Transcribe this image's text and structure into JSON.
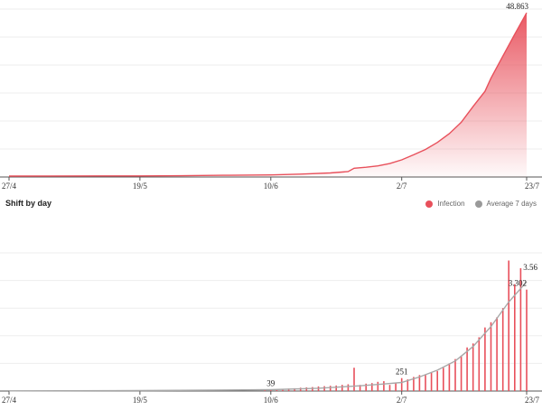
{
  "section_title": "Shift by day",
  "legend": {
    "infection_label": "Infection",
    "average_label": "Average 7 days"
  },
  "colors": {
    "infection": "#e8505b",
    "average": "#a8a8a8",
    "grid": "#eeeeee",
    "axis": "#555555"
  },
  "chart_data": [
    {
      "type": "area",
      "x_tick_labels": [
        "27/4",
        "19/5",
        "10/6",
        "2/7",
        "23/7"
      ],
      "x_range": [
        "27/4",
        "23/7"
      ],
      "grid": true,
      "annotations": [
        {
          "x": "23/7",
          "label": "48.863"
        }
      ],
      "ylim": [
        0,
        50000
      ],
      "series": [
        {
          "x": [
            "27/4",
            "4/5",
            "12/5",
            "19/5",
            "26/5",
            "2/6",
            "10/6",
            "15/6",
            "20/6",
            "23/6",
            "24/6",
            "26/6",
            "28/6",
            "30/6",
            "2/7",
            "4/7",
            "6/7",
            "8/7",
            "10/7",
            "12/7",
            "14/7",
            "16/7",
            "17/7",
            "19/7",
            "21/7",
            "23/7"
          ],
          "values": [
            270,
            290,
            320,
            330,
            370,
            500,
            620,
            860,
            1200,
            1600,
            2600,
            2900,
            3300,
            4000,
            5100,
            6600,
            8200,
            10300,
            12900,
            16300,
            21000,
            25500,
            29400,
            36000,
            42500,
            48863
          ]
        }
      ]
    },
    {
      "type": "bar",
      "x_tick_labels": [
        "27/4",
        "19/5",
        "10/6",
        "2/7",
        "23/7"
      ],
      "x_range": [
        "27/4",
        "23/7"
      ],
      "grid": true,
      "legend_position": "top-right",
      "ylim": [
        0,
        4500
      ],
      "annotations": [
        {
          "x": "10/6",
          "label": "39"
        },
        {
          "x": "2/7",
          "label": "251"
        },
        {
          "x": "23/7",
          "label": "3.302"
        },
        {
          "x": "23/7",
          "label": "3.56"
        }
      ],
      "series": [
        {
          "name": "Infection",
          "x": [
            "9/6",
            "10/6",
            "11/6",
            "12/6",
            "13/6",
            "14/6",
            "15/6",
            "16/6",
            "17/6",
            "18/6",
            "19/6",
            "20/6",
            "21/6",
            "22/6",
            "23/6",
            "24/6",
            "25/6",
            "26/6",
            "27/6",
            "28/6",
            "29/6",
            "30/6",
            "1/7",
            "2/7",
            "3/7",
            "4/7",
            "5/7",
            "6/7",
            "7/7",
            "8/7",
            "9/7",
            "10/7",
            "11/7",
            "12/7",
            "13/7",
            "14/7",
            "15/7",
            "16/7",
            "17/7",
            "18/7",
            "19/7",
            "20/7",
            "21/7",
            "22/7",
            "23/7"
          ],
          "values": [
            40,
            39,
            60,
            70,
            80,
            90,
            110,
            120,
            130,
            150,
            160,
            170,
            180,
            200,
            220,
            760,
            200,
            240,
            260,
            300,
            320,
            200,
            251,
            420,
            380,
            460,
            520,
            540,
            600,
            650,
            760,
            900,
            1040,
            1150,
            1420,
            1550,
            1750,
            2070,
            2240,
            2400,
            2700,
            4250,
            3480,
            4000,
            3302
          ]
        },
        {
          "name": "Average 7 days",
          "x": [
            "27/4",
            "19/5",
            "1/6",
            "10/6",
            "18/6",
            "25/6",
            "29/6",
            "2/7",
            "5/7",
            "8/7",
            "11/7",
            "14/7",
            "17/7",
            "20/7",
            "23/7"
          ],
          "values": [
            5,
            15,
            28,
            45,
            90,
            170,
            230,
            280,
            460,
            680,
            980,
            1450,
            2100,
            2900,
            3560
          ]
        }
      ]
    }
  ]
}
